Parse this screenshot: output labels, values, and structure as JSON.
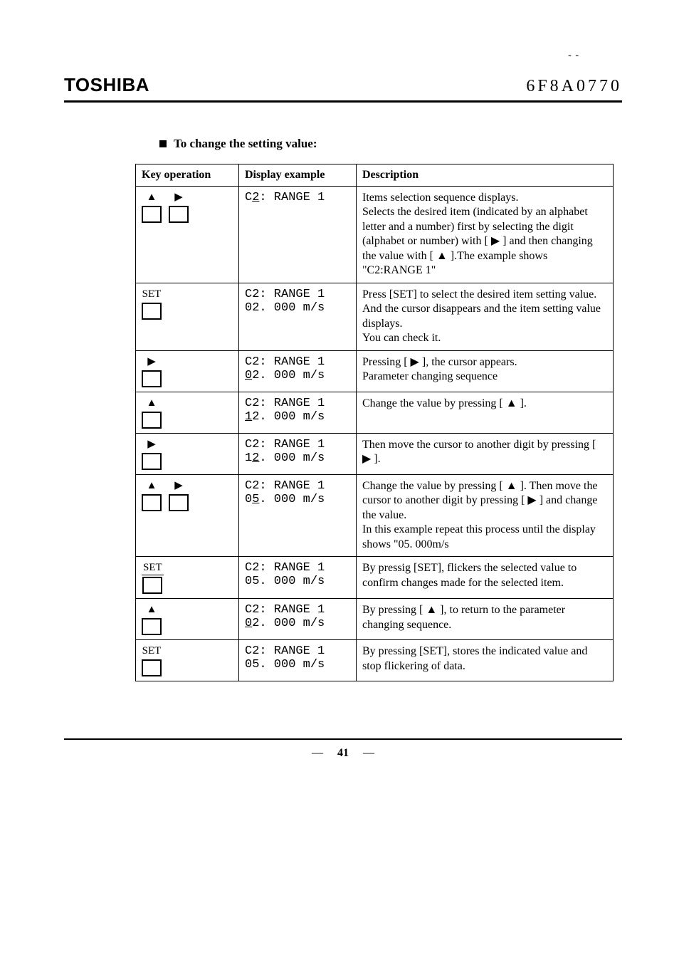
{
  "top_dashes": "- -",
  "brand": "TOSHIBA",
  "docno": "6F8A0770",
  "section_title": "To change the setting value:",
  "table": {
    "headers": [
      "Key operation",
      "Display example",
      "Description"
    ],
    "rows": [
      {
        "keys": [
          {
            "label_glyph": "▲",
            "label_text": "",
            "label_underlined": false
          },
          {
            "label_glyph": "▶",
            "label_text": "",
            "label_underlined": false
          }
        ],
        "display_pre": "C",
        "display_cursor": "2",
        "display_post": ": RANGE 1",
        "display_line2": "",
        "desc": "Items selection sequence displays.\nSelects the desired item (indicated by an alphabet letter and a number) first by selecting the digit (alphabet or number) with [ ▶ ] and then changing the value with [ ▲ ].The example shows \"C2:RANGE 1\"",
        "dashed_top": false
      },
      {
        "keys": [
          {
            "label_glyph": "",
            "label_text": "SET",
            "label_underlined": false
          }
        ],
        "display_pre": "C2: RANGE 1",
        "display_cursor": "",
        "display_post": "",
        "display_line2": "02. 000 m/s",
        "desc": "Press [SET] to select the desired item setting value. And the cursor disappears and the item setting value displays.\nYou can check it.",
        "dashed_top": false
      },
      {
        "keys": [
          {
            "label_glyph": "▶",
            "label_text": "",
            "label_underlined": false
          }
        ],
        "display_pre": "C2: RANGE 1",
        "display_cursor": "",
        "display_post": "",
        "display_line2_pre": "",
        "display_line2_cursor": "0",
        "display_line2_post": "2. 000 m/s",
        "desc": "Pressing [ ▶ ], the cursor appears.\nParameter changing sequence",
        "dashed_top": false
      },
      {
        "keys": [
          {
            "label_glyph": "▲",
            "label_text": "",
            "label_underlined": false
          }
        ],
        "display_pre": "C2: RANGE 1",
        "display_cursor": "",
        "display_post": "",
        "display_line2_pre": "",
        "display_line2_cursor": "1",
        "display_line2_post": "2. 000 m/s",
        "desc": "Change the value by pressing [ ▲ ].",
        "dashed_top": true
      },
      {
        "keys": [
          {
            "label_glyph": "▶",
            "label_text": "",
            "label_underlined": false
          }
        ],
        "display_pre": "C2: RANGE 1",
        "display_cursor": "",
        "display_post": "",
        "display_line2_pre": "1",
        "display_line2_cursor": "2",
        "display_line2_post": ". 000 m/s",
        "desc": "Then move the cursor to another digit by pressing [ ▶ ].",
        "dashed_top": true
      },
      {
        "keys": [
          {
            "label_glyph": "▲",
            "label_text": "",
            "label_underlined": false
          },
          {
            "label_glyph": "▶",
            "label_text": "",
            "label_underlined": false
          }
        ],
        "display_pre": "C2: RANGE 1",
        "display_cursor": "",
        "display_post": "",
        "display_line2_pre": "0",
        "display_line2_cursor": "5",
        "display_line2_post": ". 000 m/s",
        "desc": "Change the value by pressing [ ▲ ]. Then move the cursor to another digit by pressing [ ▶ ] and change the value.\nIn this example repeat this process until the display shows \"05. 000m/s",
        "dashed_top": false
      },
      {
        "keys": [
          {
            "label_glyph": "",
            "label_text": "SET",
            "label_underlined": true
          }
        ],
        "display_pre": "C2: RANGE 1",
        "display_cursor": "",
        "display_post": "",
        "display_line2": "05. 000 m/s",
        "desc": "By pressig [SET], flickers the selected value to confirm changes made for the selected item.",
        "dashed_top": false
      },
      {
        "keys": [
          {
            "label_glyph": "▲",
            "label_text": "",
            "label_underlined": false
          }
        ],
        "display_pre": "C2: RANGE 1",
        "display_cursor": "",
        "display_post": "",
        "display_line2_pre": "",
        "display_line2_cursor": "0",
        "display_line2_post": "2. 000 m/s",
        "desc": "By pressing [ ▲ ], to return to the parameter changing sequence.",
        "dashed_top": true
      },
      {
        "keys": [
          {
            "label_glyph": "",
            "label_text": "SET",
            "label_underlined": false
          }
        ],
        "display_pre": "C2: RANGE 1",
        "display_cursor": "",
        "display_post": "",
        "display_line2": "05. 000 m/s",
        "desc": "By pressing [SET], stores the indicated value and stop flickering of data.",
        "dashed_top": false
      }
    ]
  },
  "page_number": "41"
}
